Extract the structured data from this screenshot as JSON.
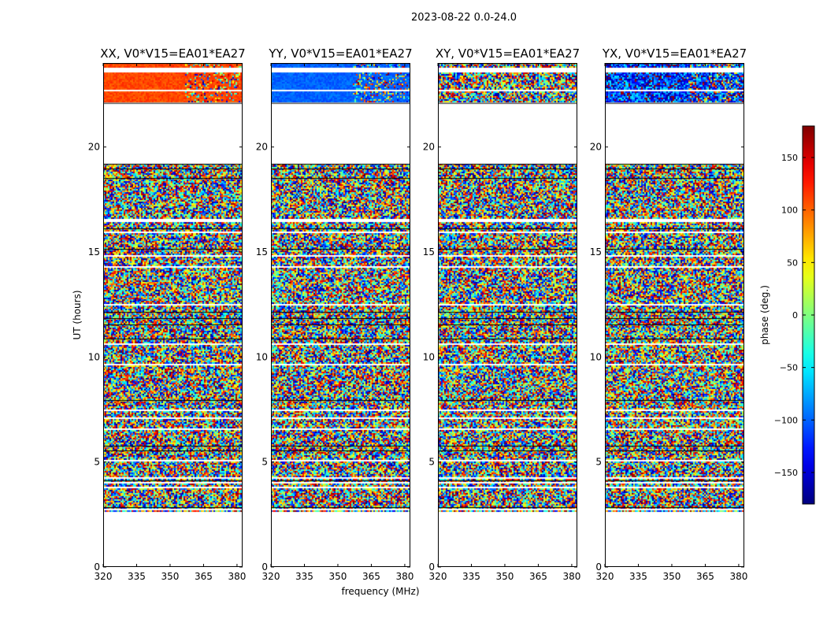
{
  "chart_data": {
    "type": "heatmap",
    "suptitle": "2023-08-22 0.0-24.0",
    "xlabel": "frequency (MHz)",
    "ylabel": "UT (hours)",
    "xlim": [
      320,
      382.5
    ],
    "ylim": [
      0,
      24
    ],
    "xticks": [
      "320",
      "335",
      "350",
      "365",
      "380"
    ],
    "xtick_values": [
      320,
      335,
      350,
      365,
      380
    ],
    "yticks": [
      "0",
      "5",
      "10",
      "15",
      "20"
    ],
    "ytick_values": [
      0,
      5,
      10,
      15,
      20
    ],
    "panels": [
      {
        "title": "XX, V0*V15=EA01*EA27",
        "top_segment_phase_mean": 110,
        "top_segment_spread": 25
      },
      {
        "title": "YY, V0*V15=EA01*EA27",
        "top_segment_phase_mean": -100,
        "top_segment_spread": 25
      },
      {
        "title": "XY, V0*V15=EA01*EA27",
        "top_segment_phase_mean": null,
        "top_segment_spread": 180
      },
      {
        "title": "YX, V0*V15=EA01*EA27",
        "top_segment_phase_mean": -120,
        "top_segment_spread": 150
      }
    ],
    "data_time_ranges_hours": [
      [
        2.6,
        19.2
      ],
      [
        22.1,
        24.0
      ]
    ],
    "colorbar": {
      "label": "phase (deg.)",
      "colormap": "jet",
      "range": [
        -180,
        180
      ],
      "ticks": [
        "−150",
        "−100",
        "−50",
        "0",
        "50",
        "100",
        "150"
      ],
      "tick_values": [
        -150,
        -100,
        -50,
        0,
        50,
        100,
        150
      ]
    }
  }
}
